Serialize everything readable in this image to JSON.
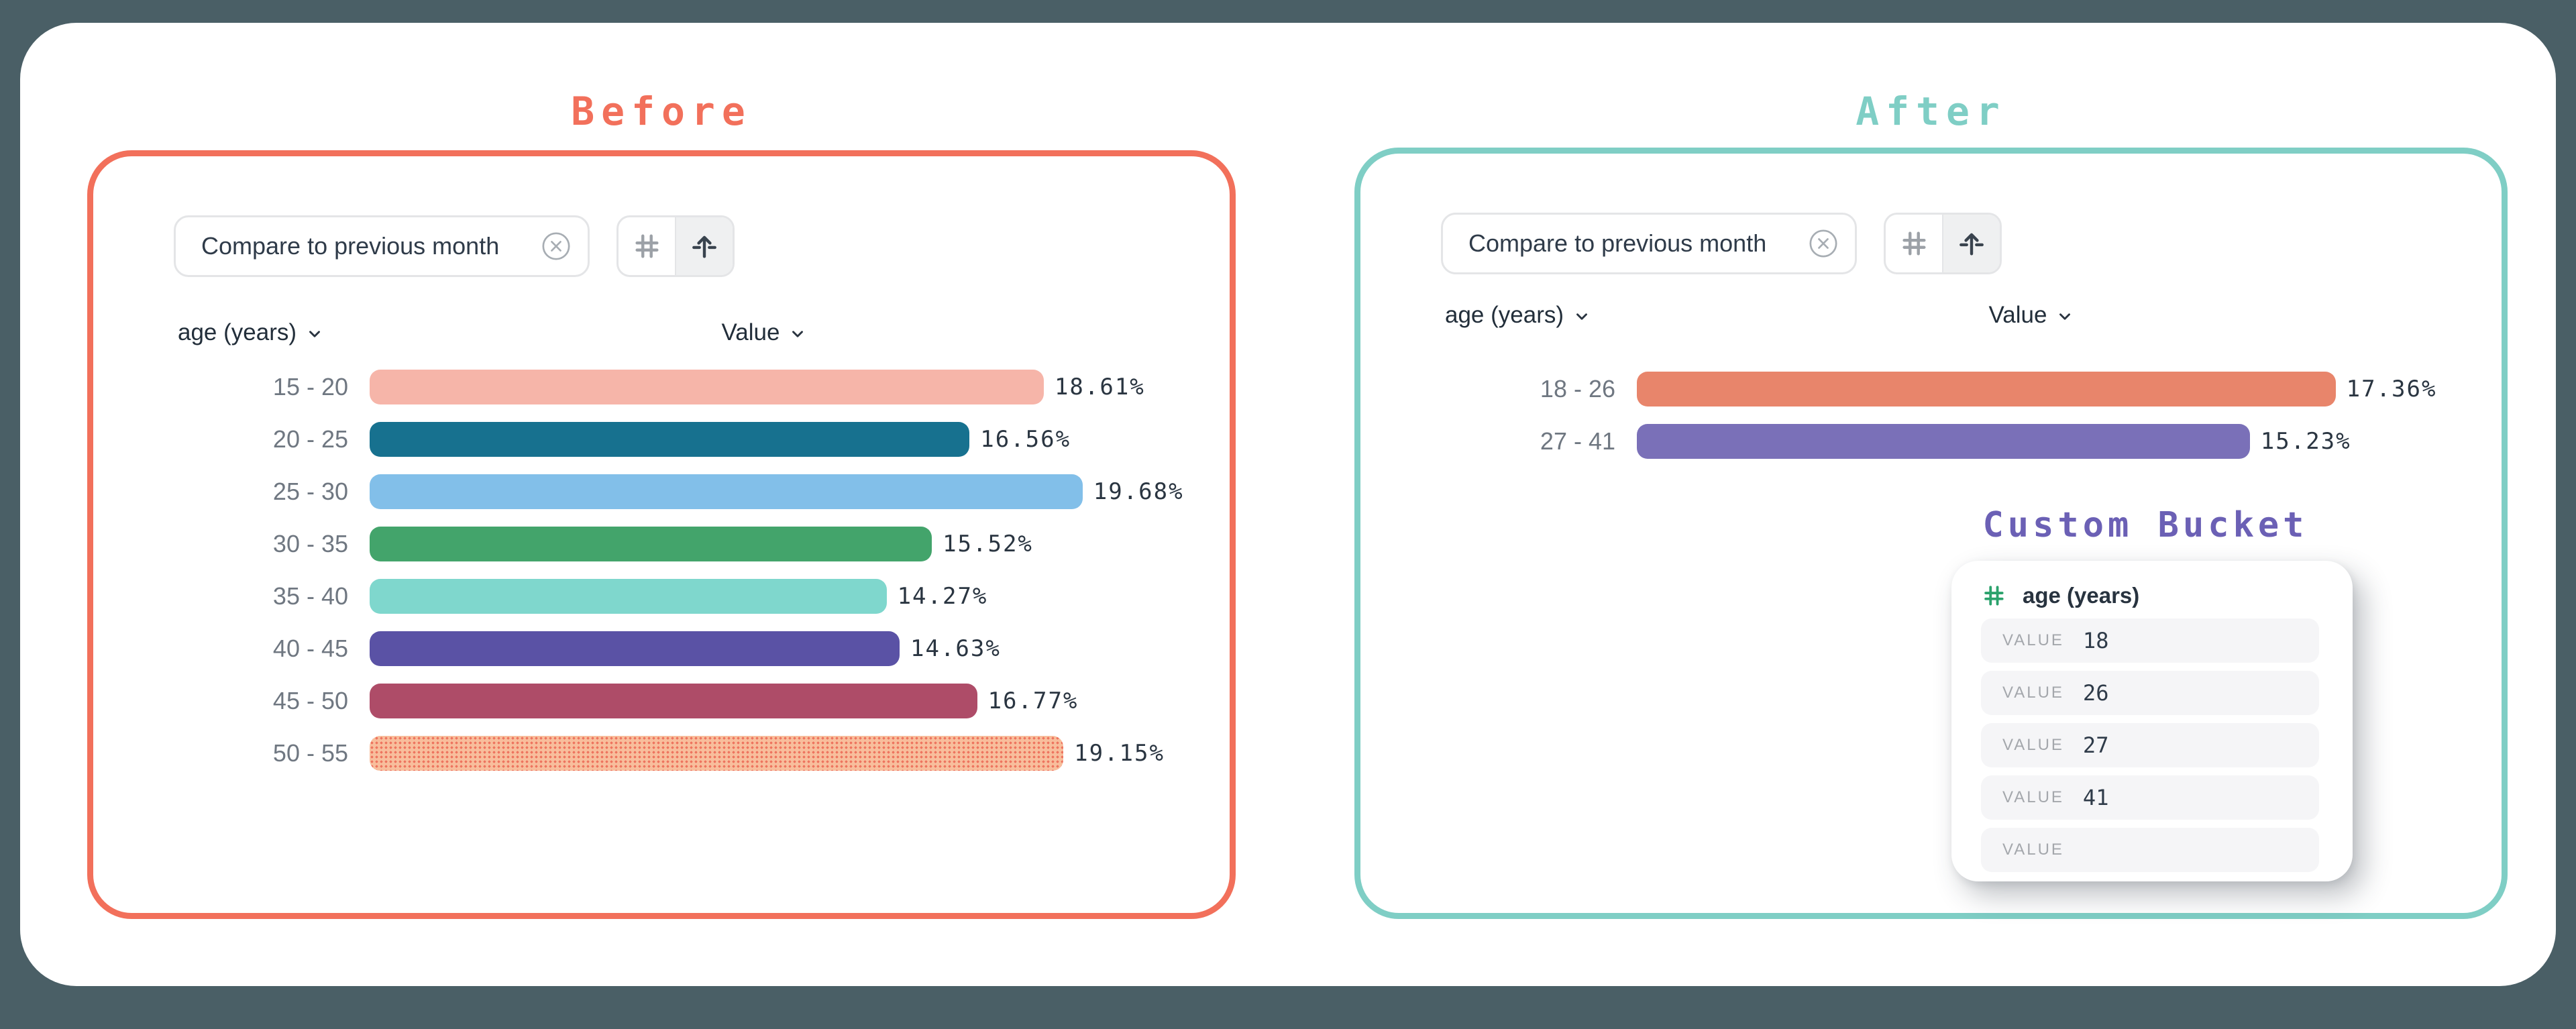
{
  "page": {
    "background_color": "#4A5F66",
    "card_color": "#FFFFFF"
  },
  "before_panel": {
    "title": "Before",
    "accent_color": "#F2705B",
    "filter_chip": {
      "label": "Compare to previous month",
      "close_icon": "circle-x-icon"
    },
    "toggle": {
      "icons": [
        "hash-icon",
        "arrow-up-icon"
      ],
      "active": "arrow-up-icon"
    },
    "columns": {
      "category_label": "age (years)",
      "value_label": "Value",
      "sort_icon": "chevron-down-icon"
    }
  },
  "after_panel": {
    "title": "After",
    "accent_color": "#7FCEC5",
    "filter_chip": {
      "label": "Compare to previous month",
      "close_icon": "circle-x-icon"
    },
    "toggle": {
      "icons": [
        "hash-icon",
        "arrow-up-icon"
      ],
      "active": "arrow-up-icon"
    },
    "columns": {
      "category_label": "age (years)",
      "value_label": "Value",
      "sort_icon": "chevron-down-icon"
    }
  },
  "custom_bucket": {
    "title": "Custom Bucket",
    "title_color": "#6B60B5",
    "field_icon": "hash-icon",
    "field_icon_color": "#2BA26C",
    "field_name": "age (years)",
    "rows": [
      {
        "label": "VALUE",
        "value": "18"
      },
      {
        "label": "VALUE",
        "value": "26"
      },
      {
        "label": "VALUE",
        "value": "27"
      },
      {
        "label": "VALUE",
        "value": "41"
      },
      {
        "label": "VALUE",
        "value": ""
      }
    ]
  },
  "chart_data": [
    {
      "type": "bar",
      "orientation": "horizontal",
      "title": "Before",
      "xlabel": "",
      "ylabel": "age (years)",
      "value_column": "Value",
      "grid": false,
      "legend": false,
      "xlim": [
        0,
        20
      ],
      "categories": [
        "15 - 20",
        "20 - 25",
        "25 - 30",
        "30 - 35",
        "35 - 40",
        "40 - 45",
        "45 - 50",
        "50 - 55"
      ],
      "values": [
        18.61,
        16.56,
        19.68,
        15.52,
        14.27,
        14.63,
        16.77,
        19.15
      ],
      "value_labels": [
        "18.61%",
        "16.56%",
        "19.68%",
        "15.52%",
        "14.27%",
        "14.63%",
        "16.77%",
        "19.15%"
      ],
      "bar_colors": [
        "#F6B5A9",
        "#17718F",
        "#82BFE9",
        "#43A46B",
        "#7FD7CD",
        "#5A52A5",
        "#AE4C68",
        "#F8BE9C"
      ],
      "bar_textures": [
        "solid",
        "solid",
        "solid",
        "solid",
        "solid",
        "solid",
        "solid",
        "dotted"
      ],
      "dot_color": "#EE7660"
    },
    {
      "type": "bar",
      "orientation": "horizontal",
      "title": "After",
      "xlabel": "",
      "ylabel": "age (years)",
      "value_column": "Value",
      "grid": false,
      "legend": false,
      "xlim": [
        0,
        20
      ],
      "categories": [
        "18 - 26",
        "27 - 41"
      ],
      "values": [
        17.36,
        15.23
      ],
      "value_labels": [
        "17.36%",
        "15.23%"
      ],
      "bar_colors": [
        "#E8856B",
        "#7A70B8"
      ],
      "bar_textures": [
        "solid",
        "solid"
      ],
      "dot_color": "#EE7660"
    }
  ]
}
